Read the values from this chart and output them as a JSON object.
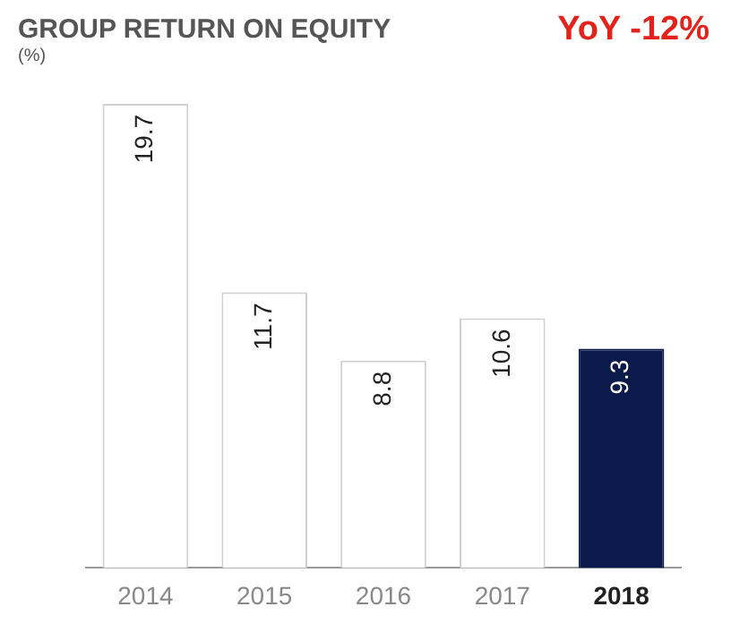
{
  "chart_data": {
    "type": "bar",
    "title": "GROUP RETURN ON EQUITY",
    "subtitle": "(%)",
    "annotations": [
      "YoY -12%"
    ],
    "categories": [
      "2014",
      "2015",
      "2016",
      "2017",
      "2018"
    ],
    "values": [
      19.7,
      11.7,
      8.8,
      10.6,
      9.3
    ],
    "colors": [
      "#ffffff",
      "#ffffff",
      "#ffffff",
      "#ffffff",
      "#0a1a4a"
    ],
    "data_labels": true,
    "grid": false,
    "legend": false
  }
}
